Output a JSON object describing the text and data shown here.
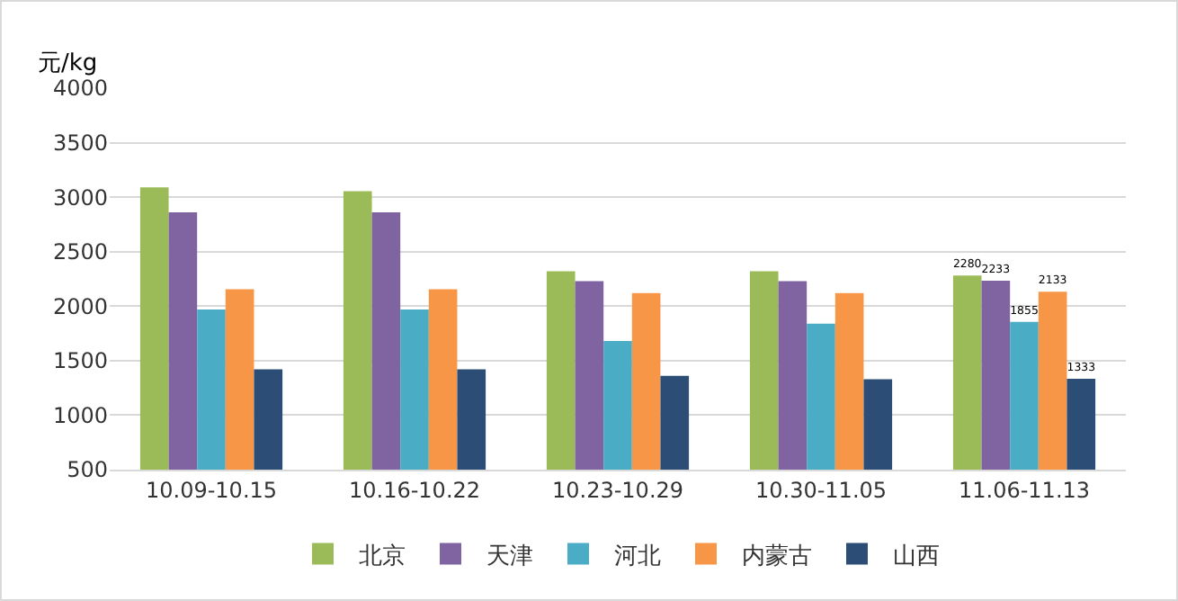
{
  "chart_data": {
    "type": "bar",
    "ylabel": "元/kg",
    "categories": [
      "10.09-10.15",
      "10.16-10.22",
      "10.23-10.29",
      "10.30-11.05",
      "11.06-11.13"
    ],
    "series": [
      {
        "name": "北京",
        "color": "#9bbb59",
        "values": [
          3090,
          3055,
          2320,
          2320,
          2280
        ],
        "value_labels": [
          null,
          null,
          null,
          null,
          "2280"
        ]
      },
      {
        "name": "天津",
        "color": "#8064a2",
        "values": [
          2860,
          2860,
          2230,
          2230,
          2233
        ],
        "value_labels": [
          null,
          null,
          null,
          null,
          "2233"
        ]
      },
      {
        "name": "河北",
        "color": "#4bacc6",
        "values": [
          1970,
          1970,
          1680,
          1840,
          1855
        ],
        "value_labels": [
          null,
          null,
          null,
          null,
          "1855"
        ]
      },
      {
        "name": "内蒙古",
        "color": "#f79646",
        "values": [
          2155,
          2155,
          2120,
          2120,
          2133
        ],
        "value_labels": [
          null,
          null,
          null,
          null,
          "2133"
        ]
      },
      {
        "name": "山西",
        "color": "#2c4d75",
        "values": [
          1420,
          1420,
          1360,
          1330,
          1333
        ],
        "value_labels": [
          null,
          null,
          null,
          null,
          "1333"
        ]
      }
    ],
    "ylim": [
      500,
      4000
    ],
    "yticks": [
      500,
      1000,
      1500,
      2000,
      2500,
      3000,
      3500,
      4000
    ],
    "grid": "y",
    "legend": "bottom"
  }
}
